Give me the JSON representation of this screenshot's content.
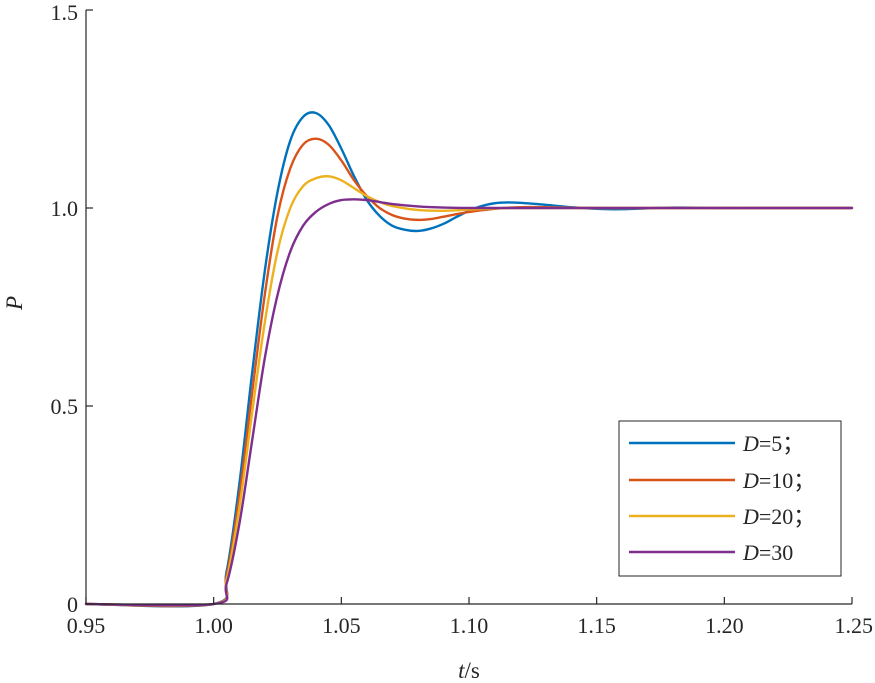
{
  "chart_data": {
    "type": "line",
    "title": "",
    "xlabel": {
      "var": "t",
      "unit": "/s"
    },
    "ylabel": "P",
    "xlim": [
      0.95,
      1.25
    ],
    "ylim": [
      0,
      1.5
    ],
    "xticks": [
      0.95,
      1.0,
      1.05,
      1.1,
      1.15,
      1.2,
      1.25
    ],
    "xtick_labels": [
      "0.95",
      "1.00",
      "1.05",
      "1.10",
      "1.15",
      "1.20",
      "1.25"
    ],
    "yticks": [
      0,
      0.5,
      1.0,
      1.5
    ],
    "ytick_labels": [
      "0",
      "0.5",
      "1.0",
      "1.5"
    ],
    "grid": false,
    "legend_position": "bottom-right",
    "series": [
      {
        "name": "D=5；",
        "name_var": "D",
        "name_rest": "=5；",
        "color": "#0072BD",
        "x": [
          0.95,
          1.0,
          1.005,
          1.01,
          1.015,
          1.02,
          1.025,
          1.03,
          1.035,
          1.04,
          1.045,
          1.05,
          1.055,
          1.06,
          1.065,
          1.07,
          1.075,
          1.08,
          1.085,
          1.09,
          1.095,
          1.1,
          1.105,
          1.11,
          1.115,
          1.12,
          1.13,
          1.14,
          1.15,
          1.16,
          1.18,
          1.2,
          1.22,
          1.25
        ],
        "y": [
          0,
          0,
          0.08,
          0.3,
          0.58,
          0.84,
          1.04,
          1.17,
          1.23,
          1.24,
          1.21,
          1.15,
          1.08,
          1.02,
          0.98,
          0.955,
          0.945,
          0.942,
          0.948,
          0.96,
          0.977,
          0.993,
          1.005,
          1.012,
          1.014,
          1.013,
          1.008,
          1.002,
          0.998,
          0.997,
          1.001,
          1.0,
          1.0,
          1.0
        ]
      },
      {
        "name": "D=10；",
        "name_var": "D",
        "name_rest": "=10；",
        "color": "#D95319",
        "x": [
          0.95,
          1.0,
          1.005,
          1.01,
          1.015,
          1.02,
          1.025,
          1.03,
          1.035,
          1.04,
          1.045,
          1.05,
          1.055,
          1.06,
          1.065,
          1.07,
          1.075,
          1.08,
          1.085,
          1.09,
          1.1,
          1.11,
          1.12,
          1.13,
          1.15,
          1.2,
          1.25
        ],
        "y": [
          0,
          0,
          0.07,
          0.27,
          0.53,
          0.78,
          0.98,
          1.1,
          1.16,
          1.175,
          1.16,
          1.12,
          1.07,
          1.03,
          1.0,
          0.982,
          0.973,
          0.97,
          0.972,
          0.978,
          0.99,
          0.998,
          1.002,
          1.002,
          1.0,
          1.0,
          1.0
        ]
      },
      {
        "name": "D=20；",
        "name_var": "D",
        "name_rest": "=20；",
        "color": "#EDB120",
        "x": [
          0.95,
          1.0,
          1.005,
          1.01,
          1.015,
          1.02,
          1.025,
          1.03,
          1.035,
          1.04,
          1.045,
          1.05,
          1.055,
          1.06,
          1.065,
          1.07,
          1.08,
          1.09,
          1.1,
          1.11,
          1.12,
          1.15,
          1.2,
          1.25
        ],
        "y": [
          0,
          0,
          0.06,
          0.24,
          0.48,
          0.71,
          0.89,
          1.0,
          1.055,
          1.075,
          1.08,
          1.07,
          1.05,
          1.03,
          1.015,
          1.005,
          0.995,
          0.993,
          0.996,
          0.999,
          1.0,
          1.0,
          1.0,
          1.0
        ]
      },
      {
        "name": "D=30",
        "name_var": "D",
        "name_rest": "=30",
        "color": "#7E2F8E",
        "x": [
          0.95,
          1.0,
          1.005,
          1.01,
          1.015,
          1.02,
          1.025,
          1.03,
          1.035,
          1.04,
          1.045,
          1.05,
          1.055,
          1.06,
          1.065,
          1.07,
          1.08,
          1.09,
          1.1,
          1.12,
          1.15,
          1.2,
          1.25
        ],
        "y": [
          0,
          0,
          0.05,
          0.2,
          0.41,
          0.62,
          0.78,
          0.89,
          0.955,
          0.99,
          1.01,
          1.02,
          1.022,
          1.02,
          1.015,
          1.01,
          1.004,
          1.001,
          1.0,
          1.0,
          1.0,
          1.0,
          1.0
        ]
      }
    ]
  }
}
